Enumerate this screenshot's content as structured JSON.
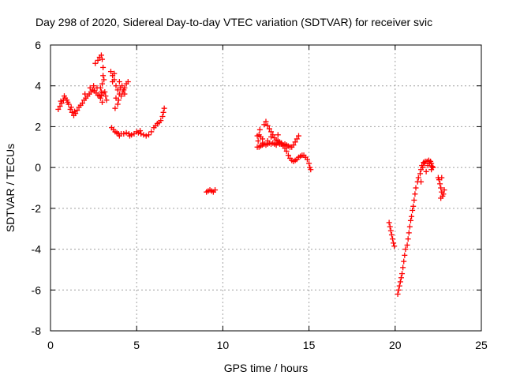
{
  "chart_data": {
    "type": "scatter",
    "title": "Day 298 of 2020, Sidereal Day-to-day VTEC variation (SDTVAR) for receiver svic",
    "xlabel": "GPS time / hours",
    "ylabel": "SDTVAR / TECUs",
    "xlim": [
      0,
      25
    ],
    "ylim": [
      -8,
      6
    ],
    "xticks": [
      0,
      5,
      10,
      15,
      20,
      25
    ],
    "yticks": [
      -8,
      -6,
      -4,
      -2,
      0,
      2,
      4,
      6
    ],
    "xtick_labels": [
      "0",
      "5",
      "10",
      "15",
      "20",
      "25"
    ],
    "ytick_labels": [
      "-8",
      "-6",
      "-4",
      "-2",
      "0",
      "2",
      "4",
      "6"
    ],
    "grid": true,
    "marker": "+",
    "color": "#ff0000",
    "series": [
      {
        "name": "SDTVAR",
        "points": [
          [
            0.45,
            2.85
          ],
          [
            0.55,
            3.0
          ],
          [
            0.65,
            3.15
          ],
          [
            0.75,
            3.3
          ],
          [
            0.85,
            3.4
          ],
          [
            0.95,
            3.3
          ],
          [
            1.05,
            3.1
          ],
          [
            1.15,
            2.85
          ],
          [
            1.25,
            2.7
          ],
          [
            1.35,
            2.55
          ],
          [
            1.45,
            2.65
          ],
          [
            1.55,
            2.8
          ],
          [
            1.65,
            2.95
          ],
          [
            1.75,
            3.05
          ],
          [
            1.85,
            3.15
          ],
          [
            1.95,
            3.3
          ],
          [
            2.05,
            3.4
          ],
          [
            2.15,
            3.5
          ],
          [
            2.25,
            3.6
          ],
          [
            2.35,
            3.7
          ],
          [
            2.45,
            3.8
          ],
          [
            2.55,
            3.75
          ],
          [
            2.65,
            3.65
          ],
          [
            2.75,
            3.55
          ],
          [
            2.85,
            3.5
          ],
          [
            2.95,
            3.55
          ],
          [
            3.05,
            3.65
          ],
          [
            3.15,
            3.7
          ],
          [
            3.2,
            3.5
          ],
          [
            3.25,
            3.3
          ],
          [
            0.6,
            3.25
          ],
          [
            0.8,
            3.5
          ],
          [
            1.0,
            3.2
          ],
          [
            1.2,
            2.95
          ],
          [
            1.4,
            2.75
          ],
          [
            2.0,
            3.6
          ],
          [
            2.3,
            3.9
          ],
          [
            2.5,
            4.0
          ],
          [
            2.7,
            3.9
          ],
          [
            2.9,
            3.4
          ],
          [
            3.0,
            3.2
          ],
          [
            2.6,
            5.1
          ],
          [
            2.75,
            5.25
          ],
          [
            2.85,
            5.4
          ],
          [
            2.95,
            5.5
          ],
          [
            3.0,
            5.3
          ],
          [
            3.05,
            4.9
          ],
          [
            3.05,
            4.5
          ],
          [
            3.0,
            4.1
          ],
          [
            2.95,
            3.7
          ],
          [
            2.9,
            3.9
          ],
          [
            3.1,
            4.3
          ],
          [
            3.5,
            4.7
          ],
          [
            3.6,
            4.5
          ],
          [
            3.7,
            4.3
          ],
          [
            3.8,
            4.0
          ],
          [
            3.9,
            3.8
          ],
          [
            4.0,
            3.6
          ],
          [
            4.1,
            3.5
          ],
          [
            4.2,
            3.7
          ],
          [
            4.3,
            3.9
          ],
          [
            4.4,
            4.1
          ],
          [
            4.5,
            4.2
          ],
          [
            3.6,
            4.2
          ],
          [
            3.8,
            3.4
          ],
          [
            3.9,
            3.1
          ],
          [
            3.95,
            3.3
          ],
          [
            4.05,
            3.9
          ],
          [
            4.15,
            4.0
          ],
          [
            4.3,
            3.6
          ],
          [
            3.75,
            2.9
          ],
          [
            3.7,
            4.6
          ],
          [
            4.0,
            4.2
          ],
          [
            4.25,
            3.8
          ],
          [
            3.55,
            1.95
          ],
          [
            3.65,
            1.85
          ],
          [
            3.75,
            1.75
          ],
          [
            3.85,
            1.7
          ],
          [
            3.95,
            1.65
          ],
          [
            4.1,
            1.65
          ],
          [
            4.25,
            1.65
          ],
          [
            4.4,
            1.7
          ],
          [
            4.55,
            1.65
          ],
          [
            4.7,
            1.6
          ],
          [
            4.85,
            1.65
          ],
          [
            5.0,
            1.75
          ],
          [
            5.1,
            1.7
          ],
          [
            5.25,
            1.65
          ],
          [
            5.4,
            1.6
          ],
          [
            5.55,
            1.55
          ],
          [
            5.7,
            1.6
          ],
          [
            5.85,
            1.75
          ],
          [
            6.0,
            1.95
          ],
          [
            6.1,
            2.05
          ],
          [
            6.2,
            2.15
          ],
          [
            6.3,
            2.2
          ],
          [
            6.4,
            2.3
          ],
          [
            6.5,
            2.5
          ],
          [
            6.55,
            2.7
          ],
          [
            6.6,
            2.9
          ],
          [
            4.0,
            1.55
          ],
          [
            4.6,
            1.55
          ],
          [
            5.2,
            1.8
          ],
          [
            9.05,
            -1.2
          ],
          [
            9.15,
            -1.15
          ],
          [
            9.25,
            -1.1
          ],
          [
            9.35,
            -1.15
          ],
          [
            9.45,
            -1.2
          ],
          [
            9.55,
            -1.1
          ],
          [
            12.0,
            1.0
          ],
          [
            12.05,
            1.3
          ],
          [
            12.1,
            1.6
          ],
          [
            12.15,
            1.85
          ],
          [
            12.2,
            1.5
          ],
          [
            12.3,
            1.2
          ],
          [
            12.4,
            2.1
          ],
          [
            12.5,
            2.25
          ],
          [
            12.6,
            2.05
          ],
          [
            12.7,
            1.9
          ],
          [
            12.8,
            1.75
          ],
          [
            12.9,
            1.6
          ],
          [
            13.0,
            1.45
          ],
          [
            13.1,
            1.35
          ],
          [
            13.2,
            1.3
          ],
          [
            13.3,
            1.25
          ],
          [
            13.4,
            1.15
          ],
          [
            13.5,
            1.05
          ],
          [
            13.6,
            0.95
          ],
          [
            13.7,
            0.8
          ],
          [
            13.8,
            0.6
          ],
          [
            13.9,
            0.45
          ],
          [
            14.0,
            0.35
          ],
          [
            14.1,
            0.3
          ],
          [
            14.2,
            0.35
          ],
          [
            14.3,
            0.4
          ],
          [
            14.4,
            0.5
          ],
          [
            14.5,
            0.55
          ],
          [
            14.6,
            0.6
          ],
          [
            14.7,
            0.6
          ],
          [
            14.8,
            0.5
          ],
          [
            14.9,
            0.4
          ],
          [
            15.0,
            0.2
          ],
          [
            15.05,
            0.0
          ],
          [
            15.1,
            -0.1
          ],
          [
            12.1,
            1.0
          ],
          [
            12.2,
            1.05
          ],
          [
            12.3,
            1.1
          ],
          [
            12.4,
            1.15
          ],
          [
            12.5,
            1.1
          ],
          [
            12.6,
            1.15
          ],
          [
            12.7,
            1.2
          ],
          [
            12.8,
            1.15
          ],
          [
            12.9,
            1.2
          ],
          [
            13.0,
            1.15
          ],
          [
            13.1,
            1.1
          ],
          [
            13.2,
            1.2
          ],
          [
            13.3,
            1.15
          ],
          [
            13.4,
            1.2
          ],
          [
            13.5,
            1.1
          ],
          [
            13.6,
            1.15
          ],
          [
            13.7,
            1.1
          ],
          [
            13.8,
            1.05
          ],
          [
            13.9,
            1.0
          ],
          [
            14.0,
            1.0
          ],
          [
            14.1,
            1.1
          ],
          [
            14.2,
            1.25
          ],
          [
            14.3,
            1.4
          ],
          [
            14.4,
            1.55
          ],
          [
            12.0,
            1.55
          ],
          [
            12.3,
            1.4
          ],
          [
            12.6,
            1.3
          ],
          [
            13.2,
            1.6
          ],
          [
            12.8,
            1.5
          ],
          [
            19.65,
            -2.7
          ],
          [
            19.7,
            -2.9
          ],
          [
            19.75,
            -3.1
          ],
          [
            19.8,
            -3.3
          ],
          [
            19.85,
            -3.5
          ],
          [
            19.9,
            -3.7
          ],
          [
            19.95,
            -3.85
          ],
          [
            20.15,
            -6.2
          ],
          [
            20.2,
            -6.0
          ],
          [
            20.25,
            -5.8
          ],
          [
            20.3,
            -5.6
          ],
          [
            20.35,
            -5.4
          ],
          [
            20.4,
            -5.2
          ],
          [
            20.45,
            -4.9
          ],
          [
            20.5,
            -4.6
          ],
          [
            20.55,
            -4.3
          ],
          [
            20.6,
            -4.0
          ],
          [
            20.7,
            -3.8
          ],
          [
            20.75,
            -3.5
          ],
          [
            20.8,
            -3.2
          ],
          [
            20.85,
            -2.9
          ],
          [
            20.9,
            -2.6
          ],
          [
            20.95,
            -2.4
          ],
          [
            21.0,
            -2.1
          ],
          [
            21.05,
            -1.9
          ],
          [
            21.1,
            -1.6
          ],
          [
            21.15,
            -1.3
          ],
          [
            21.2,
            -1.0
          ],
          [
            21.3,
            -0.7
          ],
          [
            21.35,
            -0.5
          ],
          [
            21.45,
            -0.3
          ],
          [
            21.5,
            -0.1
          ],
          [
            21.55,
            0.1
          ],
          [
            21.65,
            0.25
          ],
          [
            21.75,
            0.3
          ],
          [
            21.85,
            0.3
          ],
          [
            21.95,
            0.35
          ],
          [
            22.05,
            0.3
          ],
          [
            22.1,
            0.2
          ],
          [
            22.15,
            0.05
          ],
          [
            22.2,
            0.0
          ],
          [
            21.6,
            0.0
          ],
          [
            21.7,
            0.2
          ],
          [
            21.9,
            0.1
          ],
          [
            22.0,
            0.2
          ],
          [
            22.1,
            -0.1
          ],
          [
            21.8,
            -0.2
          ],
          [
            21.5,
            -0.7
          ],
          [
            22.5,
            -0.5
          ],
          [
            22.55,
            -0.6
          ],
          [
            22.6,
            -0.8
          ],
          [
            22.65,
            -1.0
          ],
          [
            22.7,
            -1.2
          ],
          [
            22.75,
            -1.4
          ],
          [
            22.8,
            -1.3
          ],
          [
            22.85,
            -1.1
          ],
          [
            22.7,
            -0.5
          ],
          [
            22.65,
            -1.5
          ]
        ]
      }
    ]
  }
}
